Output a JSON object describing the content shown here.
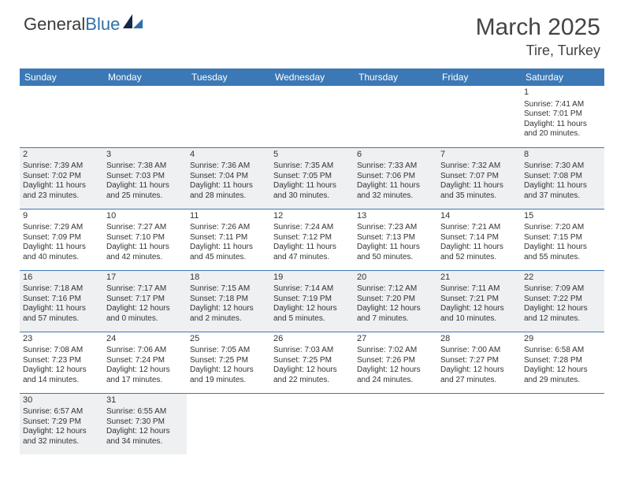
{
  "brand": {
    "part1": "General",
    "part2": "Blue",
    "accent_color": "#2f6fa8"
  },
  "title": {
    "month": "March 2025",
    "location": "Tire, Turkey"
  },
  "colors": {
    "header_bg": "#3b78b5",
    "header_text": "#ffffff",
    "cell_border": "#3b78b5",
    "shaded_bg": "#eef0f2",
    "body_text": "#333333"
  },
  "typography": {
    "month_fontsize": 30,
    "location_fontsize": 18,
    "dayheader_fontsize": 12,
    "cell_fontsize": 10
  },
  "day_headers": [
    "Sunday",
    "Monday",
    "Tuesday",
    "Wednesday",
    "Thursday",
    "Friday",
    "Saturday"
  ],
  "weeks": [
    [
      {
        "empty": true
      },
      {
        "empty": true
      },
      {
        "empty": true
      },
      {
        "empty": true
      },
      {
        "empty": true
      },
      {
        "empty": true
      },
      {
        "day": "1",
        "sunrise": "Sunrise: 7:41 AM",
        "sunset": "Sunset: 7:01 PM",
        "daylight": "Daylight: 11 hours and 20 minutes."
      }
    ],
    [
      {
        "day": "2",
        "shaded": true,
        "sunrise": "Sunrise: 7:39 AM",
        "sunset": "Sunset: 7:02 PM",
        "daylight": "Daylight: 11 hours and 23 minutes."
      },
      {
        "day": "3",
        "shaded": true,
        "sunrise": "Sunrise: 7:38 AM",
        "sunset": "Sunset: 7:03 PM",
        "daylight": "Daylight: 11 hours and 25 minutes."
      },
      {
        "day": "4",
        "shaded": true,
        "sunrise": "Sunrise: 7:36 AM",
        "sunset": "Sunset: 7:04 PM",
        "daylight": "Daylight: 11 hours and 28 minutes."
      },
      {
        "day": "5",
        "shaded": true,
        "sunrise": "Sunrise: 7:35 AM",
        "sunset": "Sunset: 7:05 PM",
        "daylight": "Daylight: 11 hours and 30 minutes."
      },
      {
        "day": "6",
        "shaded": true,
        "sunrise": "Sunrise: 7:33 AM",
        "sunset": "Sunset: 7:06 PM",
        "daylight": "Daylight: 11 hours and 32 minutes."
      },
      {
        "day": "7",
        "shaded": true,
        "sunrise": "Sunrise: 7:32 AM",
        "sunset": "Sunset: 7:07 PM",
        "daylight": "Daylight: 11 hours and 35 minutes."
      },
      {
        "day": "8",
        "shaded": true,
        "sunrise": "Sunrise: 7:30 AM",
        "sunset": "Sunset: 7:08 PM",
        "daylight": "Daylight: 11 hours and 37 minutes."
      }
    ],
    [
      {
        "day": "9",
        "sunrise": "Sunrise: 7:29 AM",
        "sunset": "Sunset: 7:09 PM",
        "daylight": "Daylight: 11 hours and 40 minutes."
      },
      {
        "day": "10",
        "sunrise": "Sunrise: 7:27 AM",
        "sunset": "Sunset: 7:10 PM",
        "daylight": "Daylight: 11 hours and 42 minutes."
      },
      {
        "day": "11",
        "sunrise": "Sunrise: 7:26 AM",
        "sunset": "Sunset: 7:11 PM",
        "daylight": "Daylight: 11 hours and 45 minutes."
      },
      {
        "day": "12",
        "sunrise": "Sunrise: 7:24 AM",
        "sunset": "Sunset: 7:12 PM",
        "daylight": "Daylight: 11 hours and 47 minutes."
      },
      {
        "day": "13",
        "sunrise": "Sunrise: 7:23 AM",
        "sunset": "Sunset: 7:13 PM",
        "daylight": "Daylight: 11 hours and 50 minutes."
      },
      {
        "day": "14",
        "sunrise": "Sunrise: 7:21 AM",
        "sunset": "Sunset: 7:14 PM",
        "daylight": "Daylight: 11 hours and 52 minutes."
      },
      {
        "day": "15",
        "sunrise": "Sunrise: 7:20 AM",
        "sunset": "Sunset: 7:15 PM",
        "daylight": "Daylight: 11 hours and 55 minutes."
      }
    ],
    [
      {
        "day": "16",
        "shaded": true,
        "sunrise": "Sunrise: 7:18 AM",
        "sunset": "Sunset: 7:16 PM",
        "daylight": "Daylight: 11 hours and 57 minutes."
      },
      {
        "day": "17",
        "shaded": true,
        "sunrise": "Sunrise: 7:17 AM",
        "sunset": "Sunset: 7:17 PM",
        "daylight": "Daylight: 12 hours and 0 minutes."
      },
      {
        "day": "18",
        "shaded": true,
        "sunrise": "Sunrise: 7:15 AM",
        "sunset": "Sunset: 7:18 PM",
        "daylight": "Daylight: 12 hours and 2 minutes."
      },
      {
        "day": "19",
        "shaded": true,
        "sunrise": "Sunrise: 7:14 AM",
        "sunset": "Sunset: 7:19 PM",
        "daylight": "Daylight: 12 hours and 5 minutes."
      },
      {
        "day": "20",
        "shaded": true,
        "sunrise": "Sunrise: 7:12 AM",
        "sunset": "Sunset: 7:20 PM",
        "daylight": "Daylight: 12 hours and 7 minutes."
      },
      {
        "day": "21",
        "shaded": true,
        "sunrise": "Sunrise: 7:11 AM",
        "sunset": "Sunset: 7:21 PM",
        "daylight": "Daylight: 12 hours and 10 minutes."
      },
      {
        "day": "22",
        "shaded": true,
        "sunrise": "Sunrise: 7:09 AM",
        "sunset": "Sunset: 7:22 PM",
        "daylight": "Daylight: 12 hours and 12 minutes."
      }
    ],
    [
      {
        "day": "23",
        "sunrise": "Sunrise: 7:08 AM",
        "sunset": "Sunset: 7:23 PM",
        "daylight": "Daylight: 12 hours and 14 minutes."
      },
      {
        "day": "24",
        "sunrise": "Sunrise: 7:06 AM",
        "sunset": "Sunset: 7:24 PM",
        "daylight": "Daylight: 12 hours and 17 minutes."
      },
      {
        "day": "25",
        "sunrise": "Sunrise: 7:05 AM",
        "sunset": "Sunset: 7:25 PM",
        "daylight": "Daylight: 12 hours and 19 minutes."
      },
      {
        "day": "26",
        "sunrise": "Sunrise: 7:03 AM",
        "sunset": "Sunset: 7:25 PM",
        "daylight": "Daylight: 12 hours and 22 minutes."
      },
      {
        "day": "27",
        "sunrise": "Sunrise: 7:02 AM",
        "sunset": "Sunset: 7:26 PM",
        "daylight": "Daylight: 12 hours and 24 minutes."
      },
      {
        "day": "28",
        "sunrise": "Sunrise: 7:00 AM",
        "sunset": "Sunset: 7:27 PM",
        "daylight": "Daylight: 12 hours and 27 minutes."
      },
      {
        "day": "29",
        "sunrise": "Sunrise: 6:58 AM",
        "sunset": "Sunset: 7:28 PM",
        "daylight": "Daylight: 12 hours and 29 minutes."
      }
    ],
    [
      {
        "day": "30",
        "shaded": true,
        "sunrise": "Sunrise: 6:57 AM",
        "sunset": "Sunset: 7:29 PM",
        "daylight": "Daylight: 12 hours and 32 minutes."
      },
      {
        "day": "31",
        "shaded": true,
        "sunrise": "Sunrise: 6:55 AM",
        "sunset": "Sunset: 7:30 PM",
        "daylight": "Daylight: 12 hours and 34 minutes."
      },
      {
        "empty": true
      },
      {
        "empty": true
      },
      {
        "empty": true
      },
      {
        "empty": true
      },
      {
        "empty": true
      }
    ]
  ]
}
